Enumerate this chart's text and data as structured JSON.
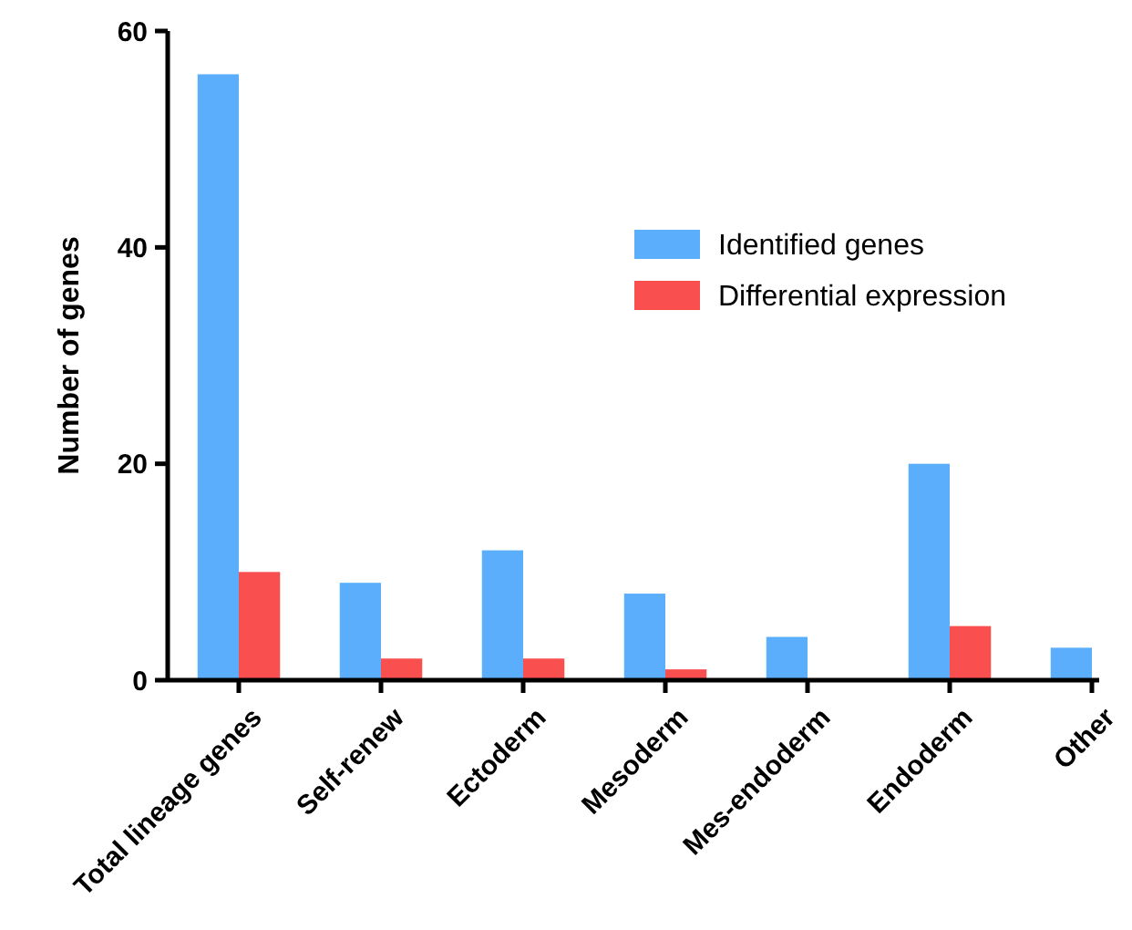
{
  "chart_data": {
    "type": "bar",
    "ylabel": "Number of genes",
    "categories": [
      "Total lineage genes",
      "Self-renew",
      "Ectoderm",
      "Mesoderm",
      "Mes-endoderm",
      "Endoderm",
      "Other"
    ],
    "series": [
      {
        "name": "Identified genes",
        "color": "#5aaefc",
        "values": [
          56,
          9,
          12,
          8,
          4,
          20,
          3
        ]
      },
      {
        "name": "Differential expression",
        "color": "#f94f4f",
        "values": [
          10,
          2,
          2,
          1,
          0,
          5,
          0
        ]
      }
    ],
    "ylim": [
      0,
      60
    ],
    "yticks": [
      0,
      20,
      40,
      60
    ],
    "grid": false,
    "legend": "top right"
  }
}
